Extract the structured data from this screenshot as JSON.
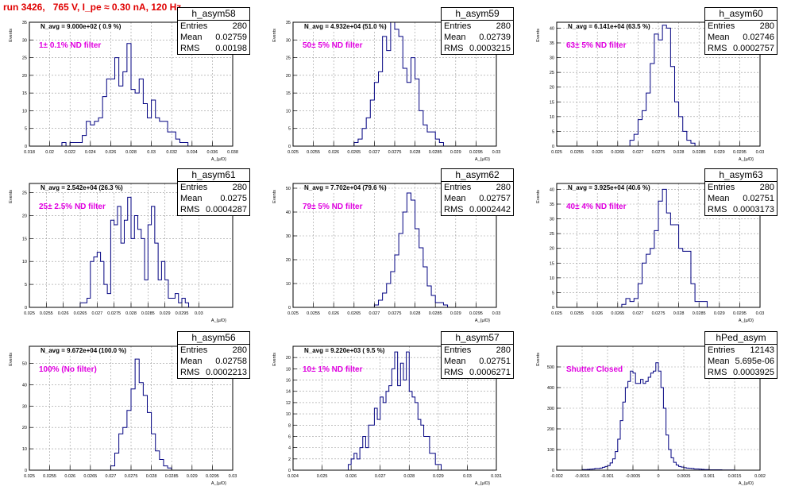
{
  "run_title": "run 3426,   765 V, I_pe ≈ 0.30 nA, 120 Hz",
  "chart_data": [
    {
      "type": "bar",
      "name": "h_asym58",
      "navg": "N_avg = 9.000e+02 ( 0.9 %)",
      "filter": "1± 0.1% ND filter",
      "stats": {
        "entries": "280",
        "mean": "0.02759",
        "rms": "0.00198"
      },
      "xlim": [
        0.018,
        0.038
      ],
      "ylim": [
        0,
        35
      ],
      "xticks": [
        "0.018",
        "0.02",
        "0.022",
        "0.024",
        "0.026",
        "0.028",
        "0.03",
        "0.032",
        "0.034",
        "0.036",
        "0.038"
      ],
      "yticks": [
        "0",
        "5",
        "10",
        "15",
        "20",
        "25",
        "30",
        "35"
      ],
      "xlabel": "A_{μ/D}",
      "ylabel": "Events",
      "bins": {
        "start": 0.0212,
        "width": 0.0004,
        "values": [
          1,
          0,
          1,
          1,
          1,
          3,
          7,
          6,
          7,
          8,
          14,
          19,
          19,
          25,
          17,
          21,
          29,
          16,
          15,
          19,
          12,
          8,
          13,
          8,
          7,
          7,
          4,
          4,
          2,
          1,
          1
        ]
      }
    },
    {
      "type": "bar",
      "name": "h_asym59",
      "navg": "N_avg = 4.932e+04 (51.0 %)",
      "filter": "50± 5% ND filter",
      "stats": {
        "entries": "280",
        "mean": "0.02739",
        "rms": "0.0003215"
      },
      "xlim": [
        0.025,
        0.03
      ],
      "ylim": [
        0,
        35
      ],
      "xticks": [
        "0.025",
        "0.0255",
        "0.026",
        "0.0265",
        "0.027",
        "0.0275",
        "0.028",
        "0.0285",
        "0.029",
        "0.0295",
        "0.03"
      ],
      "yticks": [
        "0",
        "5",
        "10",
        "15",
        "20",
        "25",
        "30",
        "35"
      ],
      "xlabel": "A_{μ/D}",
      "ylabel": "Events",
      "bins": {
        "start": 0.0265,
        "width": 0.0001,
        "values": [
          1,
          2,
          5,
          8,
          13,
          18,
          21,
          31,
          27,
          36,
          33,
          31,
          22,
          18,
          25,
          19,
          10,
          6,
          4,
          4,
          2,
          1
        ]
      }
    },
    {
      "type": "bar",
      "name": "h_asym60",
      "navg": "N_avg = 6.141e+04 (63.5 %)",
      "filter": "63± 5% ND filter",
      "stats": {
        "entries": "280",
        "mean": "0.02746",
        "rms": "0.0002757"
      },
      "xlim": [
        0.025,
        0.03
      ],
      "ylim": [
        0,
        42
      ],
      "xticks": [
        "0.025",
        "0.0255",
        "0.026",
        "0.0265",
        "0.027",
        "0.0275",
        "0.028",
        "0.0285",
        "0.029",
        "0.0295",
        "0.03"
      ],
      "yticks": [
        "0",
        "5",
        "10",
        "15",
        "20",
        "25",
        "30",
        "35",
        "40"
      ],
      "xlabel": "A_{μ/D}",
      "ylabel": "Events",
      "bins": {
        "start": 0.0268,
        "width": 0.0001,
        "values": [
          2,
          4,
          9,
          12,
          18,
          28,
          38,
          36,
          41,
          40,
          27,
          15,
          10,
          5,
          2,
          1
        ]
      }
    },
    {
      "type": "bar",
      "name": "h_asym61",
      "navg": "N_avg = 2.542e+04 (26.3 %)",
      "filter": "25± 2.5% ND filter",
      "stats": {
        "entries": "280",
        "mean": "0.0275",
        "rms": "0.0004287"
      },
      "xlim": [
        0.025,
        0.031
      ],
      "ylim": [
        0,
        27
      ],
      "xticks": [
        "0.025",
        "0.0255",
        "0.026",
        "0.0265",
        "0.027",
        "0.0275",
        "0.028",
        "0.0285",
        "0.029",
        "0.0295",
        "0.03"
      ],
      "yticks": [
        "0",
        "5",
        "10",
        "15",
        "20",
        "25"
      ],
      "xlabel": "A_{μ/D}",
      "ylabel": "Events",
      "bins": {
        "start": 0.0265,
        "width": 0.0001,
        "values": [
          1,
          1,
          2,
          10,
          11,
          12,
          10,
          5,
          3,
          19,
          18,
          22,
          14,
          19,
          24,
          15,
          20,
          17,
          15,
          6,
          18,
          22,
          14,
          6,
          10,
          6,
          2,
          2,
          3,
          1,
          2,
          1
        ]
      }
    },
    {
      "type": "bar",
      "name": "h_asym62",
      "navg": "N_avg = 7.702e+04 (79.6 %)",
      "filter": "79± 5% ND filter",
      "stats": {
        "entries": "280",
        "mean": "0.02757",
        "rms": "0.0002442"
      },
      "xlim": [
        0.025,
        0.03
      ],
      "ylim": [
        0,
        52
      ],
      "xticks": [
        "0.025",
        "0.0255",
        "0.026",
        "0.0265",
        "0.027",
        "0.0275",
        "0.028",
        "0.0285",
        "0.029",
        "0.0295",
        "0.03"
      ],
      "yticks": [
        "0",
        "10",
        "20",
        "30",
        "40",
        "50"
      ],
      "xlabel": "A_{μ/D}",
      "ylabel": "Events",
      "bins": {
        "start": 0.027,
        "width": 0.0001,
        "values": [
          1,
          3,
          6,
          10,
          15,
          22,
          31,
          40,
          48,
          45,
          33,
          25,
          17,
          9,
          5,
          2,
          2,
          1
        ]
      }
    },
    {
      "type": "bar",
      "name": "h_asym63",
      "navg": "N_avg = 3.925e+04 (40.6 %)",
      "filter": "40± 4% ND filter",
      "stats": {
        "entries": "280",
        "mean": "0.02751",
        "rms": "0.0003173"
      },
      "xlim": [
        0.025,
        0.03
      ],
      "ylim": [
        0,
        42
      ],
      "xticks": [
        "0.025",
        "0.0255",
        "0.026",
        "0.0265",
        "0.027",
        "0.0275",
        "0.028",
        "0.0285",
        "0.029",
        "0.0295",
        "0.03"
      ],
      "yticks": [
        "0",
        "5",
        "10",
        "15",
        "20",
        "25",
        "30",
        "35",
        "40"
      ],
      "xlabel": "A_{μ/D}",
      "ylabel": "Events",
      "bins": {
        "start": 0.0266,
        "width": 0.0001,
        "values": [
          1,
          3,
          2,
          3,
          8,
          15,
          18,
          20,
          26,
          36,
          40,
          32,
          28,
          28,
          20,
          19,
          19,
          8,
          2,
          2,
          2
        ]
      }
    },
    {
      "type": "bar",
      "name": "h_asym56",
      "navg": "N_avg = 9.672e+04 (100.0 %)",
      "filter": "100% (No filter)",
      "stats": {
        "entries": "280",
        "mean": "0.02758",
        "rms": "0.0002213"
      },
      "xlim": [
        0.025,
        0.03
      ],
      "ylim": [
        0,
        58
      ],
      "xticks": [
        "0.025",
        "0.0255",
        "0.026",
        "0.0265",
        "0.027",
        "0.0275",
        "0.028",
        "0.0285",
        "0.029",
        "0.0295",
        "0.03"
      ],
      "yticks": [
        "0",
        "10",
        "20",
        "30",
        "40",
        "50"
      ],
      "xlabel": "A_{μ/D}",
      "ylabel": "Events",
      "bins": {
        "start": 0.027,
        "width": 0.0001,
        "values": [
          2,
          8,
          17,
          20,
          28,
          38,
          52,
          41,
          35,
          27,
          17,
          9,
          5,
          2,
          1
        ]
      }
    },
    {
      "type": "bar",
      "name": "h_asym57",
      "navg": "N_avg = 9.220e+03 ( 9.5 %)",
      "filter": "10± 1% ND filter",
      "stats": {
        "entries": "280",
        "mean": "0.02751",
        "rms": "0.0006271"
      },
      "xlim": [
        0.024,
        0.031
      ],
      "ylim": [
        0,
        22
      ],
      "xticks": [
        "0.024",
        "0.025",
        "0.026",
        "0.027",
        "0.028",
        "0.029",
        "0.03",
        "0.031"
      ],
      "yticks": [
        "0",
        "2",
        "4",
        "6",
        "8",
        "10",
        "12",
        "14",
        "16",
        "18",
        "20"
      ],
      "xlabel": "A_{μ/D}",
      "ylabel": "Events",
      "bins": {
        "start": 0.0259,
        "width": 0.0001,
        "values": [
          1,
          2,
          3,
          2,
          4,
          6,
          4,
          8,
          8,
          11,
          9,
          13,
          12,
          14,
          15,
          18,
          21,
          15,
          19,
          16,
          21,
          14,
          13,
          12,
          9,
          8,
          6,
          6,
          3,
          3,
          1,
          1
        ]
      }
    },
    {
      "type": "bar",
      "name": "hPed_asym",
      "navg": "",
      "filter": "Shutter Closed",
      "stats": {
        "entries": "12143",
        "mean": "5.695e-06",
        "rms": "0.0003925"
      },
      "xlim": [
        -0.002,
        0.002
      ],
      "ylim": [
        0,
        600
      ],
      "xticks": [
        "-0.002",
        "-0.0015",
        "-0.001",
        "-0.0005",
        "0",
        "0.0005",
        "0.001",
        "0.0015",
        "0.002"
      ],
      "yticks": [
        "0",
        "100",
        "200",
        "300",
        "400",
        "500"
      ],
      "xlabel": "A_{μ/D}",
      "ylabel": "Events",
      "bins": {
        "start": -0.0015,
        "width": 5e-05,
        "values": [
          3,
          3,
          4,
          5,
          6,
          8,
          8,
          10,
          14,
          18,
          22,
          35,
          55,
          90,
          150,
          240,
          330,
          400,
          430,
          480,
          470,
          420,
          420,
          440,
          420,
          430,
          450,
          470,
          480,
          520,
          480,
          400,
          300,
          170,
          100,
          60,
          38,
          25,
          18,
          15,
          12,
          10,
          9,
          8,
          6,
          6,
          5,
          4,
          3,
          3,
          2,
          2,
          2,
          2,
          2,
          1,
          1,
          1,
          1,
          1
        ]
      }
    }
  ]
}
